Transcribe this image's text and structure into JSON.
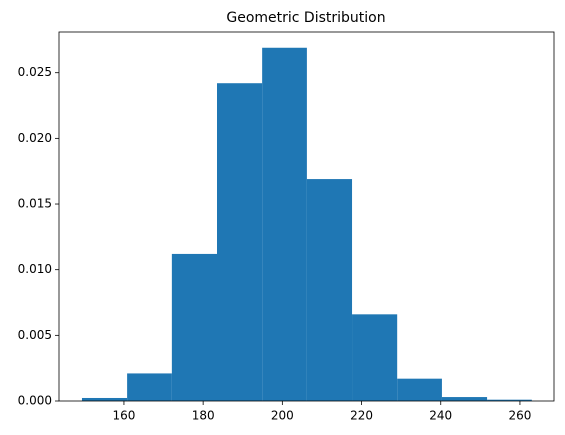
{
  "chart_data": {
    "type": "histogram",
    "title": "Geometric Distribution",
    "bins": [
      149.4,
      160.8,
      172.1,
      183.5,
      194.9,
      206.2,
      217.6,
      229.0,
      240.3,
      251.7,
      263.0
    ],
    "values": [
      0.00023,
      0.0021,
      0.0112,
      0.0242,
      0.0269,
      0.0169,
      0.0066,
      0.0017,
      0.0003,
      0.0001
    ],
    "color": "#1f77b4",
    "xlim": [
      143.6,
      268.6
    ],
    "xticks": [
      160,
      180,
      200,
      220,
      240,
      260
    ],
    "ylim": [
      0,
      0.0281
    ],
    "yticks": [
      {
        "value": 0,
        "label": "0.000"
      },
      {
        "value": 0.005,
        "label": "0.005"
      },
      {
        "value": 0.01,
        "label": "0.010"
      },
      {
        "value": 0.015,
        "label": "0.015"
      },
      {
        "value": 0.02,
        "label": "0.020"
      },
      {
        "value": 0.025,
        "label": "0.025"
      }
    ],
    "grid": false
  }
}
